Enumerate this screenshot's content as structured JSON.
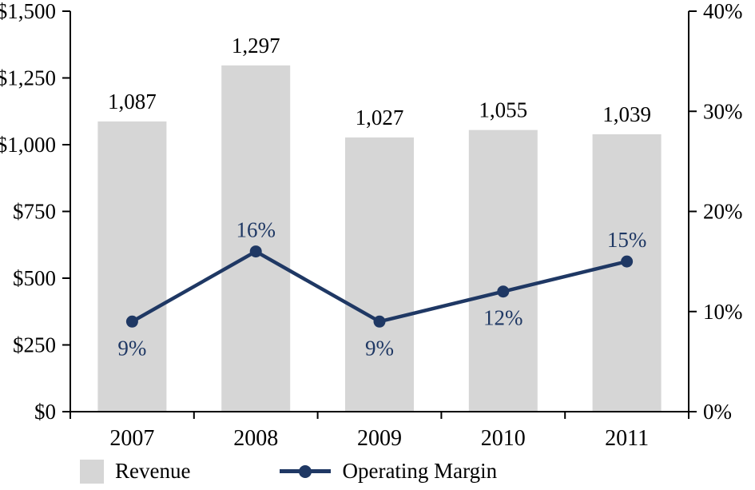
{
  "chart_data": {
    "type": "bar",
    "subtype": "bar+line dual-axis combo",
    "title": "",
    "categories": [
      "2007",
      "2008",
      "2009",
      "2010",
      "2011"
    ],
    "series": [
      {
        "name": "Revenue",
        "type": "bar",
        "axis": "left",
        "values": [
          1087,
          1297,
          1027,
          1055,
          1039
        ],
        "labels": [
          "1,087",
          "1,297",
          "1,027",
          "1,055",
          "1,039"
        ],
        "color": "#d6d6d6"
      },
      {
        "name": "Operating Margin",
        "type": "line",
        "axis": "right",
        "values": [
          9,
          16,
          9,
          12,
          15
        ],
        "labels": [
          "9%",
          "16%",
          "9%",
          "12%",
          "15%"
        ],
        "label_positions": [
          "below",
          "above",
          "below",
          "below",
          "above"
        ],
        "color": "#1f3864"
      }
    ],
    "left_axis": {
      "min": 0,
      "max": 1500,
      "step": 250,
      "tick_labels": [
        "$0",
        "$250",
        "$500",
        "$750",
        "$1,000",
        "$1,250",
        "$1,500"
      ]
    },
    "right_axis": {
      "min": 0,
      "max": 40,
      "step": 10,
      "tick_labels": [
        "0%",
        "10%",
        "20%",
        "30%",
        "40%"
      ]
    },
    "grid": false,
    "legend_position": "bottom-left",
    "legend": [
      {
        "label": "Revenue",
        "swatch": "bar"
      },
      {
        "label": "Operating Margin",
        "swatch": "line-dot"
      }
    ],
    "colors": {
      "bar": "#d6d6d6",
      "line": "#1f3864",
      "axis": "#000000",
      "text": "#000000"
    }
  }
}
